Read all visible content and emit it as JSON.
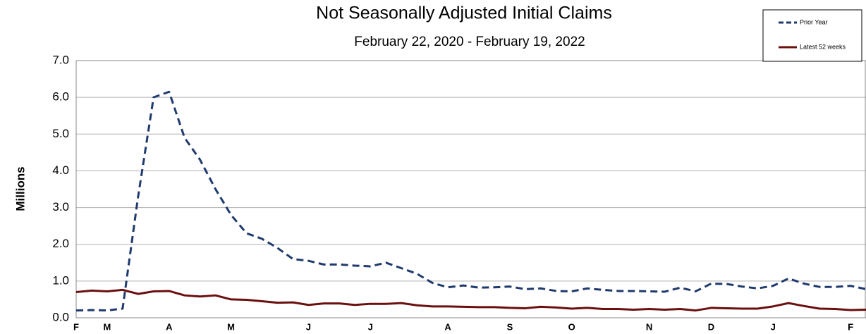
{
  "chart_data": {
    "type": "line",
    "title": "Not Seasonally Adjusted Initial Claims",
    "subtitle": "February 22, 2020 - February 19, 2022",
    "y_label": "Millions",
    "categories": [
      "F",
      null,
      "M",
      null,
      null,
      null,
      "A",
      null,
      null,
      null,
      "M",
      null,
      null,
      null,
      null,
      "J",
      null,
      null,
      null,
      "J",
      null,
      null,
      null,
      null,
      "A",
      null,
      null,
      null,
      "S",
      null,
      null,
      null,
      "O",
      null,
      null,
      null,
      null,
      "N",
      null,
      null,
      null,
      "D",
      null,
      null,
      null,
      "J",
      null,
      null,
      null,
      null,
      "F",
      null
    ],
    "series": [
      {
        "name": "Prior Year",
        "color": "#1f3a6e",
        "style": "dashed",
        "values": [
          0.2,
          0.21,
          0.2,
          0.25,
          3.3,
          6.0,
          6.15,
          4.9,
          4.3,
          3.5,
          2.8,
          2.3,
          2.15,
          1.9,
          1.6,
          1.55,
          1.45,
          1.45,
          1.42,
          1.4,
          1.5,
          1.35,
          1.2,
          0.95,
          0.83,
          0.88,
          0.82,
          0.83,
          0.85,
          0.78,
          0.8,
          0.73,
          0.72,
          0.8,
          0.76,
          0.73,
          0.73,
          0.72,
          0.71,
          0.82,
          0.72,
          0.93,
          0.92,
          0.85,
          0.8,
          0.87,
          1.07,
          0.93,
          0.84,
          0.84,
          0.87,
          0.78
        ]
      },
      {
        "name": "Latest 52 weeks",
        "color": "#6b0f0f",
        "style": "solid",
        "values": [
          0.7,
          0.74,
          0.72,
          0.76,
          0.65,
          0.72,
          0.73,
          0.61,
          0.58,
          0.61,
          0.5,
          0.49,
          0.45,
          0.41,
          0.42,
          0.35,
          0.39,
          0.39,
          0.35,
          0.38,
          0.38,
          0.4,
          0.34,
          0.31,
          0.31,
          0.3,
          0.29,
          0.29,
          0.27,
          0.26,
          0.3,
          0.28,
          0.25,
          0.27,
          0.24,
          0.24,
          0.22,
          0.24,
          0.22,
          0.24,
          0.2,
          0.27,
          0.26,
          0.25,
          0.25,
          0.31,
          0.4,
          0.32,
          0.25,
          0.24,
          0.21,
          0.22
        ]
      }
    ],
    "ylim": [
      0,
      7
    ],
    "yticks": [
      {
        "value": 0,
        "label": "0.0"
      },
      {
        "value": 1,
        "label": "1.0"
      },
      {
        "value": 2,
        "label": "2.0"
      },
      {
        "value": 3,
        "label": "3.0"
      },
      {
        "value": 4,
        "label": "4.0"
      },
      {
        "value": 5,
        "label": "5.0"
      },
      {
        "value": 6,
        "label": "6.0"
      },
      {
        "value": 7,
        "label": "7.0"
      }
    ],
    "grid": true,
    "legend": "top-right"
  }
}
